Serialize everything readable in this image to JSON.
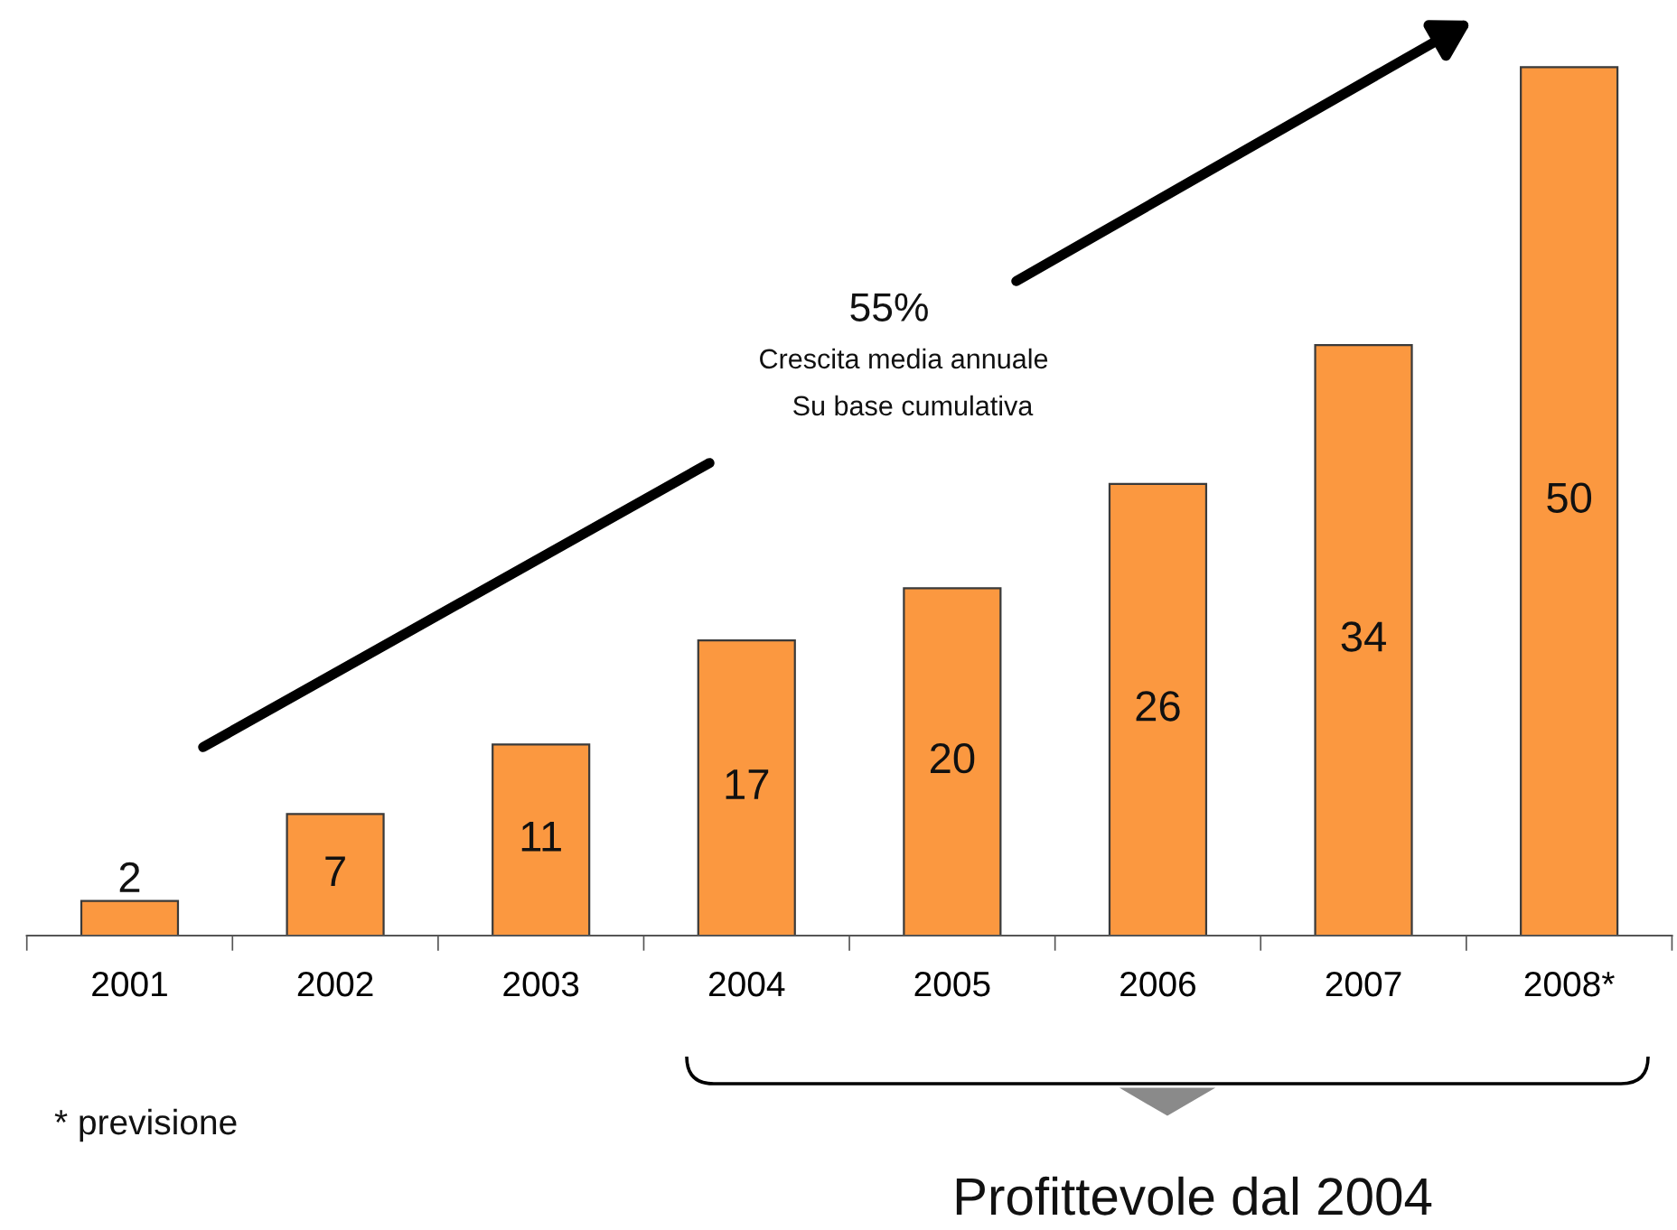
{
  "chart_data": {
    "type": "bar",
    "categories": [
      "2001",
      "2002",
      "2003",
      "2004",
      "2005",
      "2006",
      "2007",
      "2008*"
    ],
    "values": [
      2,
      7,
      11,
      17,
      20,
      26,
      34,
      50
    ],
    "color": "#fb9840",
    "data_labels": true,
    "grid": false,
    "legend": false,
    "annotations": [
      "55%",
      "Crescita media annuale",
      "Su base cumulativa",
      "* previsione",
      "Profittevole dal 2004"
    ]
  }
}
